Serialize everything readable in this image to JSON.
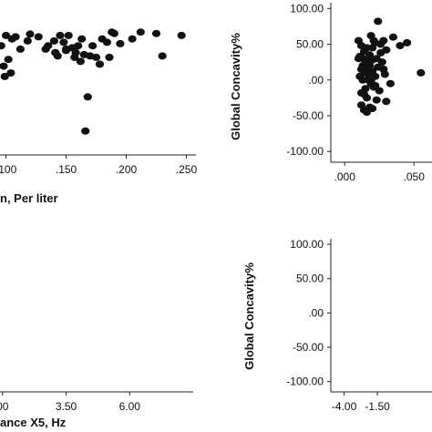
{
  "chart_data": [
    {
      "id": "top_left",
      "type": "scatter",
      "xlabel": "n, Per liter",
      "ylabel": "",
      "xlim": [
        0.095,
        0.258
      ],
      "ylim": [
        -115,
        108
      ],
      "x_ticks": [
        ".100",
        ".150",
        ".200",
        ".250"
      ],
      "x_tick_values": [
        0.1,
        0.15,
        0.2,
        0.25
      ],
      "x": [
        0.096,
        0.1,
        0.105,
        0.108,
        0.112,
        0.12,
        0.127,
        0.135,
        0.14,
        0.141,
        0.145,
        0.148,
        0.15,
        0.152,
        0.155,
        0.158,
        0.16,
        0.163,
        0.166,
        0.168,
        0.17,
        0.175,
        0.178,
        0.18,
        0.184,
        0.188,
        0.19,
        0.195,
        0.205,
        0.212,
        0.225,
        0.23,
        0.246,
        0.102,
        0.098,
        0.118,
        0.133,
        0.143,
        0.157,
        0.165,
        0.172,
        0.186,
        0.099,
        0.104,
        0.15,
        0.162
      ],
      "y": [
        45,
        60,
        55,
        58,
        40,
        62,
        58,
        45,
        52,
        35,
        60,
        50,
        38,
        60,
        42,
        35,
        45,
        55,
        -80,
        -30,
        30,
        28,
        18,
        55,
        50,
        65,
        63,
        48,
        55,
        65,
        63,
        30,
        60,
        25,
        15,
        52,
        40,
        30,
        28,
        32,
        45,
        28,
        0,
        5,
        40,
        22
      ]
    },
    {
      "id": "top_right",
      "type": "scatter",
      "xlabel": "",
      "ylabel": "Global Concavity%",
      "xlim": [
        -0.01,
        0.063
      ],
      "ylim": [
        -115,
        108
      ],
      "y_ticks": [
        "100.00",
        "50.00",
        ".00",
        "-50.00",
        "-100.00"
      ],
      "y_tick_values": [
        100,
        50,
        0,
        -50,
        -100
      ],
      "x_ticks": [
        ".000",
        ".050"
      ],
      "x_tick_values": [
        0.0,
        0.05
      ],
      "x": [
        0.01,
        0.012,
        0.014,
        0.013,
        0.016,
        0.018,
        0.02,
        0.022,
        0.015,
        0.011,
        0.017,
        0.019,
        0.021,
        0.012,
        0.014,
        0.016,
        0.018,
        0.02,
        0.024,
        0.026,
        0.028,
        0.03,
        0.025,
        0.013,
        0.015,
        0.017,
        0.019,
        0.022,
        0.023,
        0.027,
        0.035,
        0.04,
        0.045,
        0.055,
        0.03,
        0.018,
        0.014,
        0.016,
        0.012,
        0.02,
        0.022,
        0.024,
        0.026,
        0.019,
        0.021,
        0.015,
        0.013,
        0.017,
        0.028,
        0.033,
        0.01,
        0.012,
        0.029,
        0.016,
        0.011,
        0.023,
        0.018,
        0.02
      ],
      "y": [
        55,
        48,
        40,
        30,
        25,
        20,
        45,
        52,
        10,
        5,
        0,
        -5,
        -10,
        15,
        -20,
        -25,
        35,
        28,
        82,
        50,
        55,
        42,
        -15,
        20,
        12,
        8,
        -2,
        -8,
        30,
        25,
        60,
        48,
        52,
        10,
        -30,
        -38,
        -42,
        -45,
        -35,
        -40,
        5,
        18,
        38,
        62,
        55,
        -12,
        0,
        22,
        15,
        -5,
        30,
        -18,
        8,
        45,
        33,
        -28,
        28,
        12
      ]
    },
    {
      "id": "bottom_left",
      "type": "scatter",
      "xlabel": "ance X5, Hz",
      "ylabel": "",
      "x_ticks": [
        "00",
        "3.50",
        "6.00"
      ],
      "x_tick_values": [
        1.0,
        3.5,
        6.0
      ],
      "xlim": [
        0.9,
        8.5
      ],
      "ylim": [
        -115,
        108
      ],
      "x": [],
      "y": []
    },
    {
      "id": "bottom_right",
      "type": "scatter",
      "xlabel": "",
      "ylabel": "Global Concavity%",
      "xlim": [
        -5.0,
        2.6
      ],
      "ylim": [
        -115,
        108
      ],
      "y_ticks": [
        "100.00",
        "50.00",
        ".00",
        "-50.00",
        "-100.00"
      ],
      "y_tick_values": [
        100,
        50,
        0,
        -50,
        -100
      ],
      "x_ticks": [
        "-4.00",
        "-1.50"
      ],
      "x_tick_values": [
        -4.0,
        -1.5
      ],
      "x": [],
      "y": []
    }
  ],
  "colors": {
    "points": "#111111",
    "axis": "#222222"
  }
}
